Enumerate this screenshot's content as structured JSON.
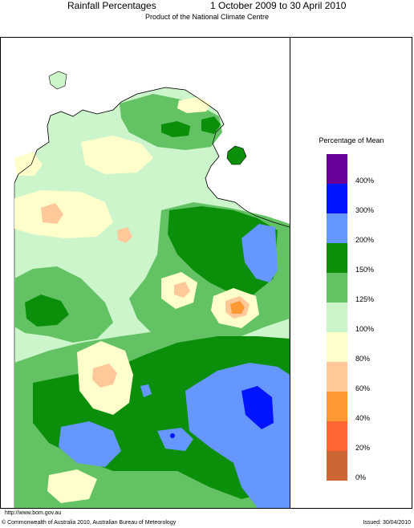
{
  "header": {
    "title": "Rainfall Percentages",
    "period": "1 October 2009 to 30 April 2010",
    "subtitle": "Product of the National Climate Centre"
  },
  "legend": {
    "title": "Percentage of Mean",
    "bins": [
      {
        "label": "400%",
        "color": "#6a0099"
      },
      {
        "label": "300%",
        "color": "#0014ff"
      },
      {
        "label": "200%",
        "color": "#6696ff"
      },
      {
        "label": "150%",
        "color": "#0b8f0b"
      },
      {
        "label": "125%",
        "color": "#63c263"
      },
      {
        "label": "100%",
        "color": "#ccf5cc"
      },
      {
        "label": "80%",
        "color": "#ffffcc"
      },
      {
        "label": "60%",
        "color": "#ffc899"
      },
      {
        "label": "40%",
        "color": "#ff9933"
      },
      {
        "label": "20%",
        "color": "#ff6633"
      },
      {
        "label": "0%",
        "color": "#cc6633"
      }
    ]
  },
  "map": {
    "ocean_color": "#ffffff",
    "coast_color": "#000000"
  },
  "footer": {
    "url": "http://www.bom.gov.au",
    "copyright": "© Commonwealth of Australia 2010, Australian Bureau of Meteorology",
    "issued": "Issued: 30/04/2010"
  }
}
